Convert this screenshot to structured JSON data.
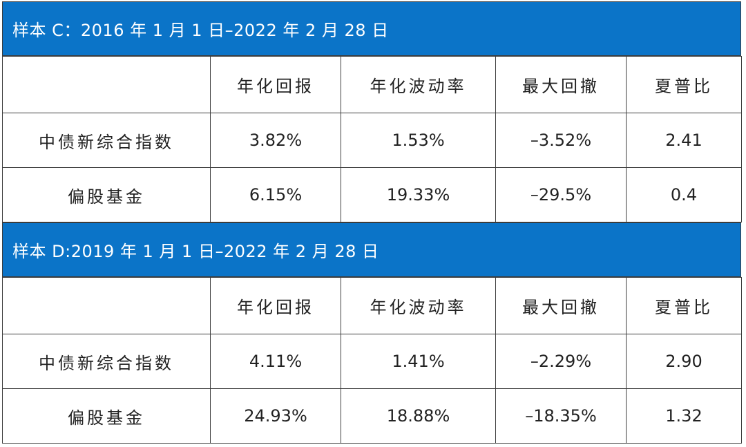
{
  "columns": [
    "",
    "年化回报",
    "年化波动率",
    "最大回撤",
    "夏普比"
  ],
  "sections": [
    {
      "title": "样本 C：2016 年 1 月 1 日–2022 年 2 月 28 日",
      "rows": [
        {
          "label": "中债新综合指数",
          "values": [
            "3.82%",
            "1.53%",
            "–3.52%",
            "2.41"
          ]
        },
        {
          "label": "偏股基金",
          "values": [
            "6.15%",
            "19.33%",
            "–29.5%",
            "0.4"
          ]
        }
      ]
    },
    {
      "title": "样本 D:2019 年 1 月 1 日–2022 年 2 月 28 日",
      "rows": [
        {
          "label": "中债新综合指数",
          "values": [
            "4.11%",
            "1.41%",
            "–2.29%",
            "2.90"
          ]
        },
        {
          "label": "偏股基金",
          "values": [
            "24.93%",
            "18.88%",
            "–18.35%",
            "1.32"
          ]
        }
      ]
    }
  ],
  "colors": {
    "header_bg": "#0b74c8",
    "header_text": "#ffffff",
    "border": "#3b3b3b"
  }
}
